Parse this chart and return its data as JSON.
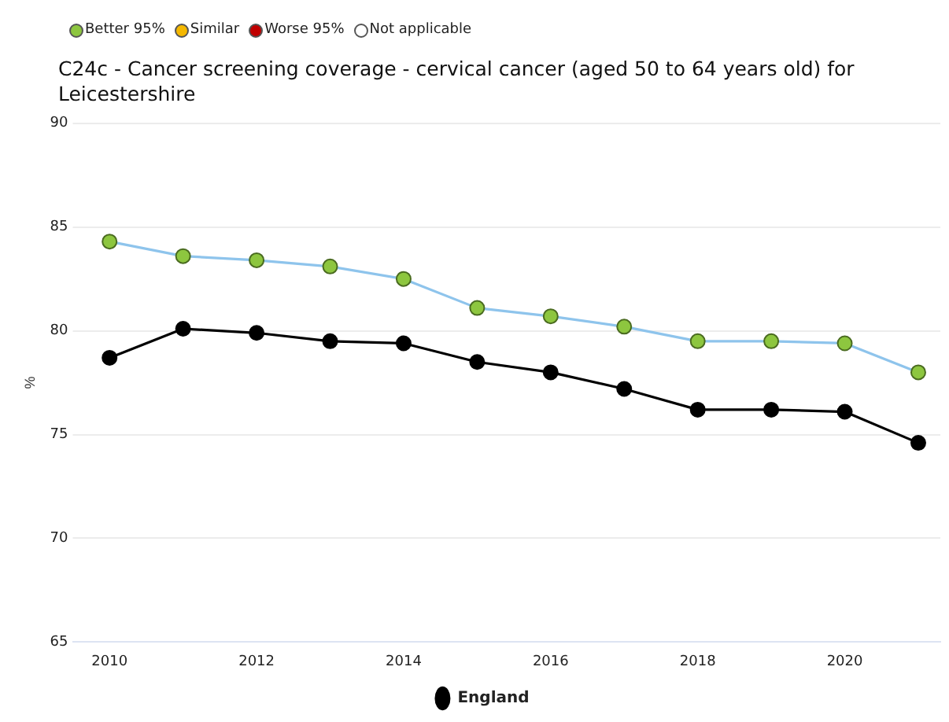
{
  "chart_data": {
    "type": "line",
    "title": "C24c - Cancer screening coverage - cervical cancer (aged 50 to 64 years old) for Leicestershire",
    "ylabel": "%",
    "annotations": [
      "Better 95%",
      "Similar",
      "Worse 95%",
      "Not applicable"
    ],
    "x": [
      2010,
      2011,
      2012,
      2013,
      2014,
      2015,
      2016,
      2017,
      2018,
      2019,
      2020,
      2021
    ],
    "series": [
      {
        "color": "#8ec4ec",
        "colors": [
          "#8dc63f",
          "#8dc63f",
          "#8dc63f",
          "#8dc63f",
          "#8dc63f",
          "#8dc63f",
          "#8dc63f",
          "#8dc63f",
          "#8dc63f",
          "#8dc63f",
          "#8dc63f",
          "#8dc63f"
        ],
        "values": [
          84.3,
          83.6,
          83.4,
          83.1,
          82.5,
          81.1,
          80.7,
          80.2,
          79.5,
          79.5,
          79.4,
          78.0
        ]
      },
      {
        "name": "England",
        "color": "#000000",
        "values": [
          78.7,
          80.1,
          79.9,
          79.5,
          79.4,
          78.5,
          78.0,
          77.2,
          76.2,
          76.2,
          76.1,
          74.6
        ]
      }
    ],
    "xlim": [
      2009.5,
      2021.3
    ],
    "xticks": [
      2010,
      2012,
      2014,
      2016,
      2018,
      2020
    ],
    "ylim": [
      65,
      90
    ],
    "yticks": [
      65,
      70,
      75,
      80,
      85,
      90
    ],
    "grid": "y",
    "legend": "bottom",
    "marker": "circle",
    "line_style": "solid"
  }
}
